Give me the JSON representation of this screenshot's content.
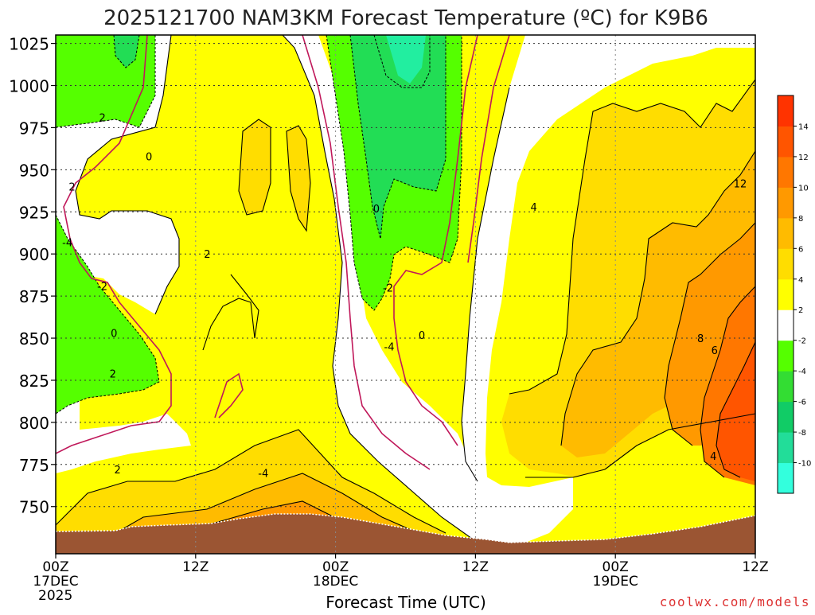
{
  "chart_data": {
    "type": "heatmap",
    "title": "2025121700 NAM3KM Forecast Temperature (ºC) for K9B6",
    "xlabel": "Forecast Time (UTC)",
    "ylabel": "",
    "credit": "coolwx.com/models",
    "x_ticks": [
      {
        "hour": 0,
        "lines": [
          "00Z",
          "17DEC",
          "2025"
        ]
      },
      {
        "hour": 12,
        "lines": [
          "12Z"
        ]
      },
      {
        "hour": 24,
        "lines": [
          "00Z",
          "18DEC"
        ]
      },
      {
        "hour": 36,
        "lines": [
          "12Z"
        ]
      },
      {
        "hour": 48,
        "lines": [
          "00Z",
          "19DEC"
        ]
      },
      {
        "hour": 60,
        "lines": [
          "12Z"
        ]
      }
    ],
    "xlim": [
      0,
      60
    ],
    "y_ticks": [
      750,
      775,
      800,
      825,
      850,
      875,
      900,
      925,
      950,
      975,
      1000,
      1025
    ],
    "ylim": [
      1030,
      722
    ],
    "grid": true,
    "colorbar": {
      "levels": [
        -12,
        -10,
        -8,
        -6,
        -4,
        -2,
        2,
        4,
        6,
        8,
        10,
        12,
        14,
        16
      ],
      "labels": [
        "-10",
        "-8",
        "-6",
        "-4",
        "-2",
        "2",
        "4",
        "6",
        "8",
        "10",
        "12",
        "14"
      ],
      "colors": [
        "#33ffdd",
        "#22dd99",
        "#11cc66",
        "#33dd33",
        "#55ff00",
        "#ffffff",
        "#ffff00",
        "#ffdd00",
        "#ffbb00",
        "#ff9900",
        "#ff7700",
        "#ff5500",
        "#ff3300"
      ]
    },
    "contour_labels": [
      {
        "text": "2",
        "hour": 5.3,
        "p": 772
      },
      {
        "text": "-4",
        "hour": 17.8,
        "p": 770
      },
      {
        "text": "2",
        "hour": 4.9,
        "p": 829
      },
      {
        "text": "0",
        "hour": 5.0,
        "p": 853
      },
      {
        "text": "-2",
        "hour": 4.0,
        "p": 881
      },
      {
        "text": "-4",
        "hour": 1.0,
        "p": 907
      },
      {
        "text": "2",
        "hour": 1.4,
        "p": 940
      },
      {
        "text": "0",
        "hour": 8.0,
        "p": 958
      },
      {
        "text": "2",
        "hour": 4.0,
        "p": 981
      },
      {
        "text": "2",
        "hour": 13.0,
        "p": 900
      },
      {
        "text": "-4",
        "hour": 28.6,
        "p": 845
      },
      {
        "text": "0",
        "hour": 31.4,
        "p": 852
      },
      {
        "text": "-2",
        "hour": 28.5,
        "p": 880
      },
      {
        "text": "0",
        "hour": 27.5,
        "p": 927
      },
      {
        "text": "4",
        "hour": 41.0,
        "p": 928
      },
      {
        "text": "4",
        "hour": 56.4,
        "p": 780
      },
      {
        "text": "6",
        "hour": 56.5,
        "p": 843
      },
      {
        "text": "8",
        "hour": 55.3,
        "p": 850
      },
      {
        "text": "12",
        "hour": 58.7,
        "p": 942
      }
    ]
  }
}
